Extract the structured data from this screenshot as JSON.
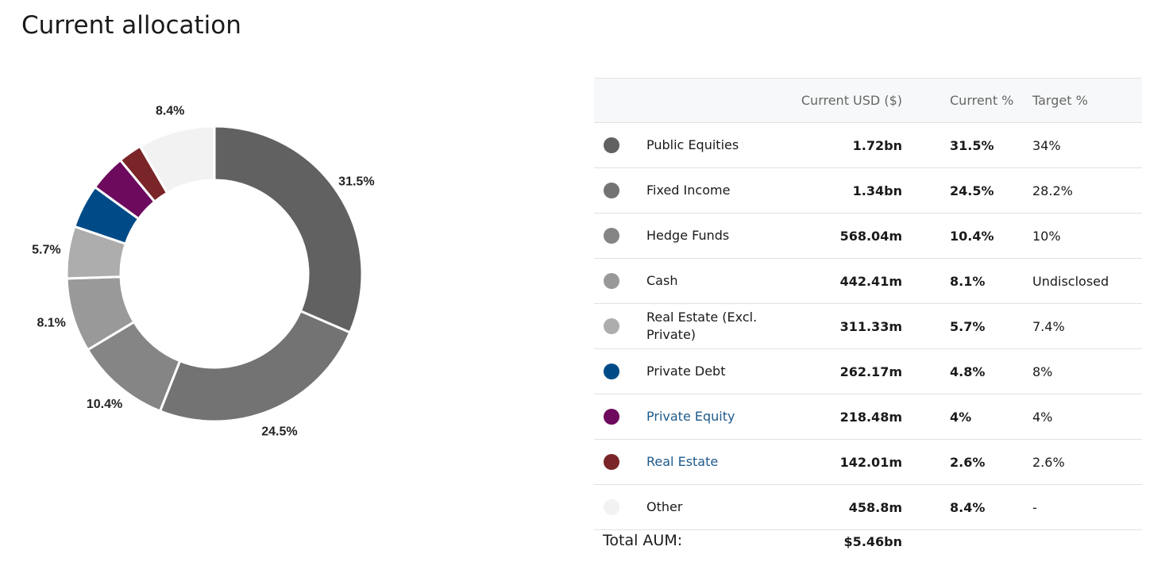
{
  "page": {
    "title": "Current allocation"
  },
  "table": {
    "headers": {
      "usd": "Current USD ($)",
      "current": "Current %",
      "target": "Target %"
    },
    "rows": [
      {
        "name": "Public Equities",
        "usd": "1.72bn",
        "current": "31.5%",
        "target": "34%",
        "color": "#616161",
        "link": false
      },
      {
        "name": "Fixed Income",
        "usd": "1.34bn",
        "current": "24.5%",
        "target": "28.2%",
        "color": "#737373",
        "link": false
      },
      {
        "name": "Hedge Funds",
        "usd": "568.04m",
        "current": "10.4%",
        "target": "10%",
        "color": "#858585",
        "link": false
      },
      {
        "name": "Cash",
        "usd": "442.41m",
        "current": "8.1%",
        "target": "Undisclosed",
        "color": "#999999",
        "link": false
      },
      {
        "name": "Real Estate (Excl. Private)",
        "usd": "311.33m",
        "current": "5.7%",
        "target": "7.4%",
        "color": "#adadad",
        "link": false
      },
      {
        "name": "Private Debt",
        "usd": "262.17m",
        "current": "4.8%",
        "target": "8%",
        "color": "#004b87",
        "link": false
      },
      {
        "name": "Private Equity",
        "usd": "218.48m",
        "current": "4%",
        "target": "4%",
        "color": "#6d0a5d",
        "link": true
      },
      {
        "name": "Real Estate",
        "usd": "142.01m",
        "current": "2.6%",
        "target": "2.6%",
        "color": "#7a2528",
        "link": true
      },
      {
        "name": "Other",
        "usd": "458.8m",
        "current": "8.4%",
        "target": "-",
        "color": "#f2f2f2",
        "link": false
      }
    ],
    "total": {
      "label": "Total AUM:",
      "value": "$5.46bn"
    }
  },
  "chart_data": {
    "type": "pie",
    "donut": true,
    "categories": [
      "Public Equities",
      "Fixed Income",
      "Hedge Funds",
      "Cash",
      "Real Estate (Excl. Private)",
      "Private Debt",
      "Private Equity",
      "Real Estate",
      "Other"
    ],
    "values": [
      31.5,
      24.5,
      10.4,
      8.1,
      5.7,
      4.8,
      4.0,
      2.6,
      8.4
    ],
    "colors": [
      "#616161",
      "#737373",
      "#858585",
      "#999999",
      "#adadad",
      "#004b87",
      "#6d0a5d",
      "#7a2528",
      "#f2f2f2"
    ],
    "data_labels": [
      "31.5%",
      "24.5%",
      "10.4%",
      "8.1%",
      "5.7%",
      "",
      "",
      "",
      "8.4%"
    ]
  }
}
